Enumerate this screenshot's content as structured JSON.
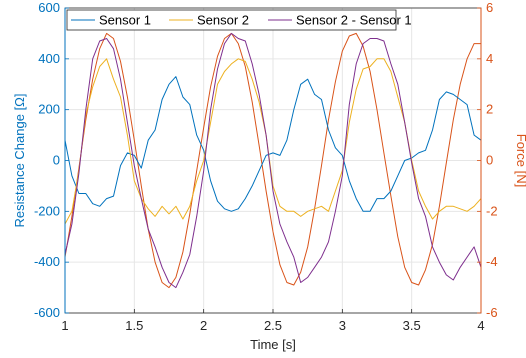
{
  "chart_data": {
    "type": "line",
    "xlabel": "Time [s]",
    "ylabel_left": "Resistance Change [Ω]",
    "ylabel_right": "Force [N]",
    "xlim": [
      1,
      4
    ],
    "ylim_left": [
      -600,
      600
    ],
    "ylim_right": [
      -6,
      6
    ],
    "x_ticks": [
      "1",
      "1.5",
      "2",
      "2.5",
      "3",
      "3.5",
      "4"
    ],
    "y_ticks_left": [
      "-600",
      "-400",
      "-200",
      "0",
      "200",
      "400",
      "600"
    ],
    "y_ticks_right": [
      "-6",
      "-4",
      "-2",
      "0",
      "2",
      "4",
      "6"
    ],
    "grid": true,
    "legend_position": "top",
    "colors": {
      "left_axis": "#0072BD",
      "right_axis": "#D95319",
      "sensor1": "#0072BD",
      "sensor2": "#EDB120",
      "difference": "#7E2F8E",
      "force": "#D95319",
      "grid": "#e6e6e6"
    },
    "series": [
      {
        "name": "Sensor 1",
        "axis": "left",
        "x": [
          1.0,
          1.05,
          1.1,
          1.15,
          1.2,
          1.25,
          1.3,
          1.35,
          1.4,
          1.45,
          1.5,
          1.55,
          1.6,
          1.65,
          1.7,
          1.75,
          1.8,
          1.85,
          1.9,
          1.95,
          2.0,
          2.05,
          2.1,
          2.15,
          2.2,
          2.25,
          2.3,
          2.35,
          2.4,
          2.45,
          2.5,
          2.55,
          2.6,
          2.65,
          2.7,
          2.75,
          2.8,
          2.85,
          2.9,
          2.95,
          3.0,
          3.05,
          3.1,
          3.15,
          3.2,
          3.25,
          3.3,
          3.35,
          3.4,
          3.45,
          3.5,
          3.55,
          3.6,
          3.65,
          3.7,
          3.75,
          3.8,
          3.85,
          3.9,
          3.95,
          4.0
        ],
        "values": [
          80,
          -60,
          -130,
          -130,
          -170,
          -180,
          -150,
          -140,
          -20,
          30,
          20,
          -30,
          80,
          120,
          240,
          300,
          330,
          250,
          220,
          100,
          40,
          -80,
          -160,
          -190,
          -200,
          -190,
          -150,
          -100,
          -40,
          20,
          30,
          20,
          80,
          200,
          300,
          320,
          260,
          240,
          120,
          50,
          20,
          -80,
          -150,
          -200,
          -200,
          -150,
          -150,
          -120,
          -60,
          0,
          10,
          30,
          40,
          120,
          240,
          270,
          260,
          240,
          220,
          100,
          80
        ]
      },
      {
        "name": "Sensor 2",
        "axis": "left",
        "x": [
          1.0,
          1.05,
          1.1,
          1.15,
          1.2,
          1.25,
          1.3,
          1.35,
          1.4,
          1.45,
          1.5,
          1.55,
          1.6,
          1.65,
          1.7,
          1.75,
          1.8,
          1.85,
          1.9,
          1.95,
          2.0,
          2.05,
          2.1,
          2.15,
          2.2,
          2.25,
          2.3,
          2.35,
          2.4,
          2.45,
          2.5,
          2.55,
          2.6,
          2.65,
          2.7,
          2.75,
          2.8,
          2.85,
          2.9,
          2.95,
          3.0,
          3.05,
          3.1,
          3.15,
          3.2,
          3.25,
          3.3,
          3.35,
          3.4,
          3.45,
          3.5,
          3.55,
          3.6,
          3.65,
          3.7,
          3.75,
          3.8,
          3.85,
          3.9,
          3.95,
          4.0
        ],
        "values": [
          -250,
          -200,
          -40,
          180,
          290,
          370,
          400,
          320,
          250,
          100,
          -80,
          -150,
          -190,
          -220,
          -180,
          -210,
          -180,
          -230,
          -180,
          -80,
          0,
          150,
          300,
          350,
          380,
          400,
          390,
          320,
          230,
          100,
          -100,
          -180,
          -200,
          -200,
          -220,
          -200,
          -190,
          -180,
          -200,
          -120,
          -40,
          150,
          280,
          360,
          370,
          400,
          400,
          350,
          250,
          150,
          0,
          -120,
          -180,
          -230,
          -200,
          -180,
          -180,
          -190,
          -200,
          -180,
          -150
        ]
      },
      {
        "name": "Sensor 2 - Sensor 1",
        "axis": "left",
        "x": [
          1.0,
          1.05,
          1.1,
          1.15,
          1.2,
          1.25,
          1.3,
          1.35,
          1.4,
          1.45,
          1.5,
          1.55,
          1.6,
          1.65,
          1.7,
          1.75,
          1.8,
          1.85,
          1.9,
          1.95,
          2.0,
          2.05,
          2.1,
          2.15,
          2.2,
          2.25,
          2.3,
          2.35,
          2.4,
          2.45,
          2.5,
          2.55,
          2.6,
          2.65,
          2.7,
          2.75,
          2.8,
          2.85,
          2.9,
          2.95,
          3.0,
          3.05,
          3.1,
          3.15,
          3.2,
          3.25,
          3.3,
          3.35,
          3.4,
          3.45,
          3.5,
          3.55,
          3.6,
          3.65,
          3.7,
          3.75,
          3.8,
          3.85,
          3.9,
          3.95,
          4.0
        ],
        "values": [
          -370,
          -250,
          -50,
          200,
          400,
          470,
          480,
          440,
          320,
          150,
          -20,
          -150,
          -270,
          -340,
          -420,
          -480,
          -500,
          -440,
          -370,
          -220,
          -40,
          200,
          360,
          460,
          500,
          480,
          470,
          380,
          260,
          100,
          -120,
          -250,
          -320,
          -380,
          -480,
          -460,
          -420,
          -380,
          -320,
          -200,
          -60,
          220,
          380,
          460,
          480,
          480,
          470,
          380,
          300,
          150,
          -10,
          -150,
          -220,
          -340,
          -400,
          -450,
          -470,
          -420,
          -380,
          -340,
          -420
        ]
      },
      {
        "name": "Force",
        "axis": "right",
        "x": [
          1.0,
          1.05,
          1.1,
          1.15,
          1.2,
          1.25,
          1.3,
          1.35,
          1.4,
          1.45,
          1.5,
          1.55,
          1.6,
          1.65,
          1.7,
          1.75,
          1.8,
          1.85,
          1.9,
          1.95,
          2.0,
          2.05,
          2.1,
          2.15,
          2.2,
          2.25,
          2.3,
          2.35,
          2.4,
          2.45,
          2.5,
          2.55,
          2.6,
          2.65,
          2.7,
          2.75,
          2.8,
          2.85,
          2.9,
          2.95,
          3.0,
          3.05,
          3.1,
          3.15,
          3.2,
          3.25,
          3.3,
          3.35,
          3.4,
          3.45,
          3.5,
          3.55,
          3.6,
          3.65,
          3.7,
          3.75,
          3.8,
          3.85,
          3.9,
          3.95,
          4.0
        ],
        "values": [
          -3.8,
          -2.2,
          -0.3,
          1.6,
          3.2,
          4.4,
          5.0,
          4.8,
          3.9,
          2.5,
          0.8,
          -1.0,
          -2.7,
          -4.0,
          -4.8,
          -5.0,
          -4.6,
          -3.6,
          -2.1,
          -0.4,
          1.3,
          2.9,
          4.1,
          4.8,
          5.0,
          4.6,
          3.7,
          2.3,
          0.6,
          -1.2,
          -2.8,
          -4.1,
          -4.8,
          -4.9,
          -4.4,
          -3.4,
          -1.9,
          -0.2,
          1.6,
          3.1,
          4.3,
          4.9,
          5.0,
          4.5,
          3.5,
          2.0,
          0.3,
          -1.4,
          -3.0,
          -4.2,
          -4.8,
          -4.9,
          -4.3,
          -3.3,
          -1.8,
          -0.1,
          1.6,
          3.0,
          4.0,
          4.6,
          4.6
        ]
      }
    ],
    "legend": [
      "Sensor 1",
      "Sensor 2",
      "Sensor 2 - Sensor 1"
    ]
  }
}
